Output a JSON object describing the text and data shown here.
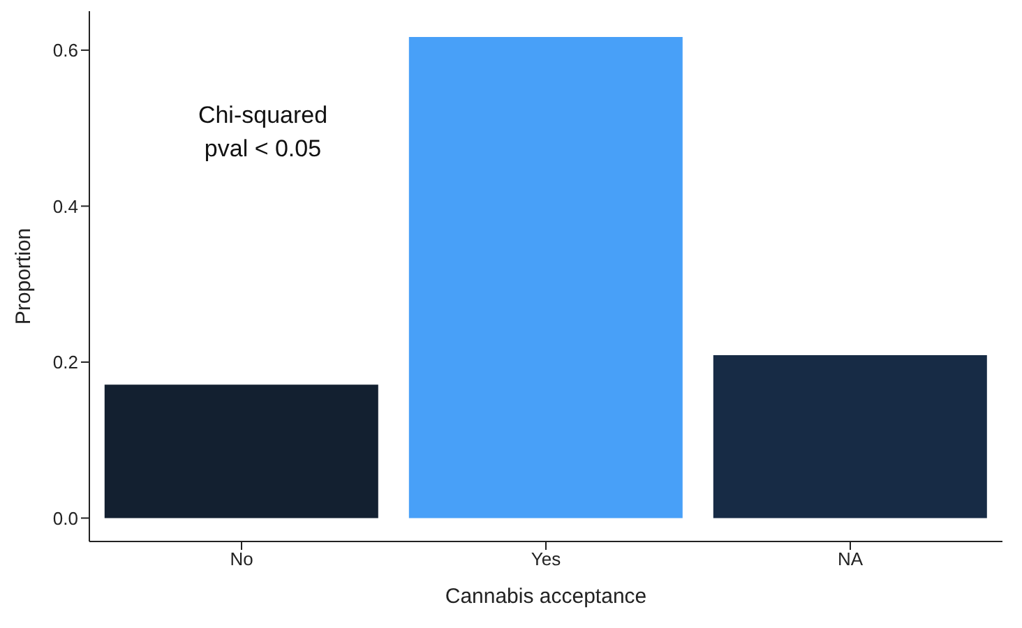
{
  "chart_data": {
    "type": "bar",
    "xlabel": "Cannabis acceptance",
    "ylabel": "Proportion",
    "categories": [
      "No",
      "Yes",
      "NA"
    ],
    "values": [
      0.171,
      0.617,
      0.209
    ],
    "colors": [
      "#132030",
      "#48a0f8",
      "#172b45"
    ],
    "ylim": [
      -0.03,
      0.65
    ],
    "yticks": [
      {
        "value": 0,
        "label": "0.0"
      },
      {
        "value": 0.2,
        "label": "0.2"
      },
      {
        "value": 0.4,
        "label": "0.4"
      },
      {
        "value": 0.6,
        "label": "0.6"
      }
    ],
    "grid": false,
    "annotations": [
      "Chi-squared\npval < 0.05"
    ]
  }
}
